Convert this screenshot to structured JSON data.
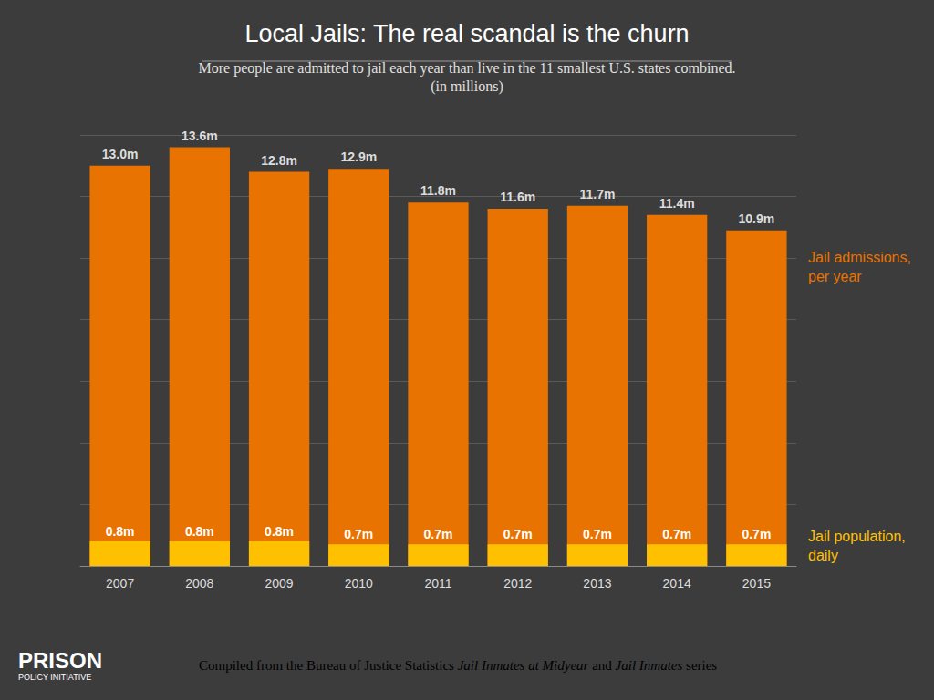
{
  "chart_data": {
    "type": "bar",
    "title": "Local Jails: The real scandal is the churn",
    "subtitle": [
      "More people are admitted to jail each year than live in the 11 smallest U.S. states combined.",
      "(in millions)"
    ],
    "categories": [
      "2007",
      "2008",
      "2009",
      "2010",
      "2011",
      "2012",
      "2013",
      "2014",
      "2015"
    ],
    "series": [
      {
        "name": "Jail admissions, per year",
        "color": "#e97300",
        "values": [
          13.0,
          13.6,
          12.8,
          12.9,
          11.8,
          11.6,
          11.7,
          11.4,
          10.9
        ],
        "value_labels": [
          "13.0m",
          "13.6m",
          "12.8m",
          "12.9m",
          "11.8m",
          "11.6m",
          "11.7m",
          "11.4m",
          "10.9m"
        ]
      },
      {
        "name": "Jail population, daily",
        "color": "#ffc000",
        "values": [
          0.8,
          0.8,
          0.8,
          0.7,
          0.7,
          0.7,
          0.7,
          0.7,
          0.7
        ],
        "value_labels": [
          "0.8m",
          "0.8m",
          "0.8m",
          "0.7m",
          "0.7m",
          "0.7m",
          "0.7m",
          "0.7m",
          "0.7m"
        ]
      }
    ],
    "ylim": [
      0,
      14
    ],
    "yticks": [
      0,
      2,
      4,
      6,
      8,
      10,
      12,
      14
    ],
    "grid": true,
    "tick_labels": "x",
    "data_labels": true,
    "stacked": false,
    "source": [
      "Compiled from the Bureau of Justice Statistics ",
      "Jail Inmates at Midyear",
      " and ",
      "Jail Inmates",
      " series"
    ],
    "logo": [
      "PRISON",
      "POLICY INITIATIVE"
    ]
  }
}
